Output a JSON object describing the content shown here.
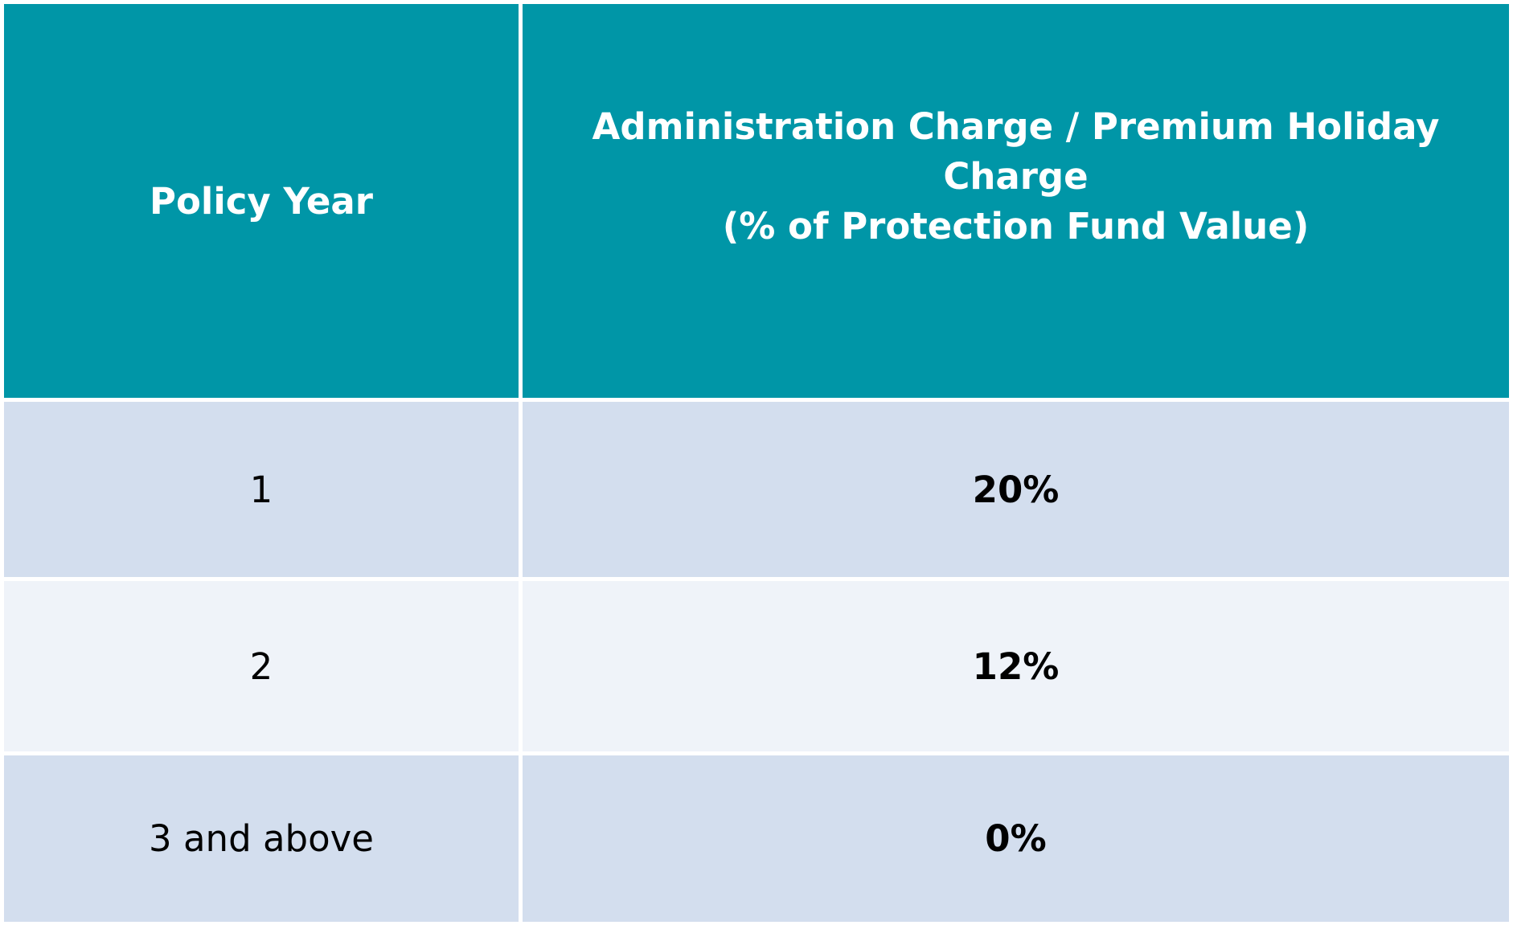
{
  "table": {
    "header": {
      "policy_year": "Policy Year",
      "charge_line1": "Administration Charge / Premium Holiday",
      "charge_line2": "Charge",
      "charge_line3": "(% of Protection Fund Value)"
    },
    "rows": [
      {
        "policy_year": "1",
        "charge": "20%"
      },
      {
        "policy_year": "2",
        "charge": "12%"
      },
      {
        "policy_year": "3 and above",
        "charge": "0%"
      }
    ],
    "colors": {
      "header_bg": "#0096a7",
      "header_text": "#ffffff",
      "row_odd_bg": "#d3deee",
      "row_even_bg": "#eff3f9"
    }
  }
}
